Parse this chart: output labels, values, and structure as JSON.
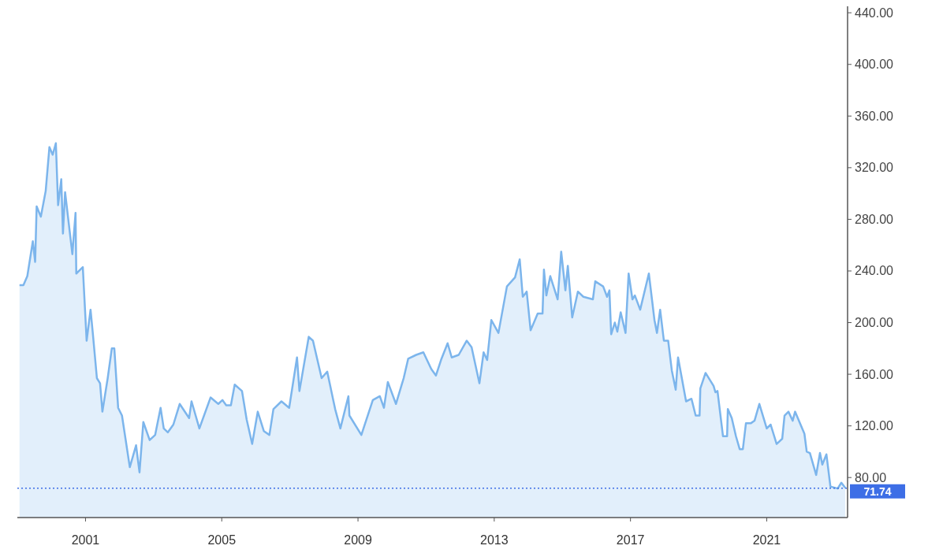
{
  "chart_data": {
    "type": "area",
    "x": [
      "1999-01-24",
      "1999-03-07",
      "1999-04-18",
      "1999-06-16",
      "1999-07-11",
      "1999-07-27",
      "1999-09-10",
      "1999-11-01",
      "1999-12-11",
      "2000-01-15",
      "2000-02-18",
      "2000-03-13",
      "2000-04-16",
      "2000-05-04",
      "2000-05-27",
      "2000-08-13",
      "2000-09-16",
      "2000-09-24",
      "2000-12-03",
      "2001-01-13",
      "2001-02-24",
      "2001-03-20",
      "2001-05-03",
      "2001-06-06",
      "2001-07-01",
      "2001-08-27",
      "2001-10-10",
      "2001-11-06",
      "2001-12-17",
      "2002-01-27",
      "2002-03-10",
      "2002-04-21",
      "2002-06-27",
      "2002-08-03",
      "2002-09-13",
      "2002-11-20",
      "2003-01-18",
      "2003-03-17",
      "2003-04-20",
      "2003-06-03",
      "2003-08-01",
      "2003-10-08",
      "2004-01-17",
      "2004-02-12",
      "2004-05-06",
      "2004-09-03",
      "2004-11-25",
      "2005-01-08",
      "2005-02-18",
      "2005-04-09",
      "2005-05-20",
      "2005-08-06",
      "2005-09-25",
      "2005-11-23",
      "2006-01-22",
      "2006-03-28",
      "2006-05-27",
      "2006-07-09",
      "2006-10-03",
      "2006-12-25",
      "2007-03-19",
      "2007-04-14",
      "2007-07-23",
      "2007-09-06",
      "2007-12-08",
      "2008-02-06",
      "2008-05-01",
      "2008-06-26",
      "2008-09-20",
      "2008-10-01",
      "2009-02-06",
      "2009-06-09",
      "2009-08-23",
      "2009-10-06",
      "2009-11-17",
      "2010-02-12",
      "2010-05-06",
      "2010-06-23",
      "2010-09-17",
      "2010-12-03",
      "2011-02-26",
      "2011-04-17",
      "2011-06-15",
      "2011-08-20",
      "2011-10-03",
      "2011-12-17",
      "2012-03-12",
      "2012-05-03",
      "2012-07-26",
      "2012-09-09",
      "2012-10-17",
      "2012-12-01",
      "2013-02-15",
      "2013-05-17",
      "2013-08-12",
      "2013-10-01",
      "2013-11-03",
      "2013-12-15",
      "2014-01-26",
      "2014-04-12",
      "2014-06-03",
      "2014-06-18",
      "2014-07-14",
      "2014-08-25",
      "2014-11-12",
      "2014-12-20",
      "2015-02-03",
      "2015-03-01",
      "2015-04-17",
      "2015-06-17",
      "2015-08-15",
      "2015-11-25",
      "2015-12-20",
      "2016-03-14",
      "2016-04-25",
      "2016-05-20",
      "2016-06-08",
      "2016-07-17",
      "2016-08-13",
      "2016-09-18",
      "2016-11-09",
      "2016-12-12",
      "2017-01-22",
      "2017-02-17",
      "2017-04-15",
      "2017-07-17",
      "2017-09-15",
      "2017-10-12",
      "2017-11-15",
      "2017-12-25",
      "2018-02-09",
      "2018-03-20",
      "2018-05-01",
      "2018-05-26",
      "2018-08-20",
      "2018-10-17",
      "2018-12-01",
      "2019-01-12",
      "2019-01-20",
      "2019-03-17",
      "2019-06-11",
      "2019-07-01",
      "2019-07-23",
      "2019-09-20",
      "2019-11-03",
      "2019-11-11",
      "2019-12-23",
      "2020-02-06",
      "2020-03-17",
      "2020-04-20",
      "2020-05-23",
      "2020-07-14",
      "2020-08-23",
      "2020-10-14",
      "2021-01-01",
      "2021-02-12",
      "2021-04-17",
      "2021-06-16",
      "2021-07-11",
      "2021-08-22",
      "2021-10-06",
      "2021-11-01",
      "2022-02-09",
      "2022-03-06",
      "2022-04-09",
      "2022-06-15",
      "2022-07-26",
      "2022-08-20",
      "2022-10-03",
      "2022-11-15",
      "2023-02-01",
      "2023-03-12",
      "2023-04-23"
    ],
    "series": [
      {
        "color": "#7cb5ec",
        "values": [
          229,
          229,
          236,
          263,
          247,
          290,
          282,
          302,
          336,
          330,
          339,
          291,
          311,
          269,
          301,
          253,
          285,
          238,
          243,
          186,
          210,
          192,
          157,
          153,
          131,
          157,
          180,
          180,
          134,
          128,
          108,
          88,
          105,
          84,
          123,
          109,
          113,
          134,
          118,
          115,
          121,
          137,
          126,
          139,
          118,
          142,
          137,
          140,
          136,
          136,
          152,
          147,
          125,
          106,
          131,
          116,
          113,
          133,
          139,
          134,
          173,
          147,
          189,
          186,
          157,
          162,
          133,
          118,
          143,
          128,
          113,
          140,
          143,
          134,
          154,
          137,
          157,
          172,
          175,
          177,
          164,
          159,
          172,
          184,
          173,
          175,
          186,
          181,
          153,
          177,
          171,
          202,
          192,
          228,
          235,
          249,
          220,
          224,
          194,
          207,
          207,
          241,
          221,
          236,
          218,
          255,
          225,
          244,
          204,
          224,
          220,
          218,
          232,
          228,
          220,
          225,
          191,
          200,
          193,
          208,
          192,
          238,
          218,
          221,
          210,
          238,
          202,
          192,
          210,
          186,
          186,
          163,
          148,
          173,
          139,
          141,
          128,
          128,
          149,
          161,
          151,
          146,
          147,
          112,
          112,
          133,
          126,
          112,
          102,
          102,
          122,
          122,
          124,
          137,
          118,
          121,
          106,
          110,
          128,
          131,
          124,
          131,
          114,
          100,
          99,
          82,
          99,
          90,
          98,
          73,
          71.5,
          76,
          72
        ]
      }
    ],
    "xlim": [
      "1999-01-01",
      "2023-05-18"
    ],
    "xticks": [
      "2001",
      "2005",
      "2009",
      "2013",
      "2017",
      "2021"
    ],
    "ylim": [
      49,
      445
    ],
    "yticks": [
      {
        "value": 80,
        "label": "80.00"
      },
      {
        "value": 120,
        "label": "120.00"
      },
      {
        "value": 160,
        "label": "160.00"
      },
      {
        "value": 200,
        "label": "200.00"
      },
      {
        "value": 240,
        "label": "240.00"
      },
      {
        "value": 280,
        "label": "280.00"
      },
      {
        "value": 320,
        "label": "320.00"
      },
      {
        "value": 360,
        "label": "360.00"
      },
      {
        "value": 400,
        "label": "400.00"
      },
      {
        "value": 440,
        "label": "440.00"
      }
    ],
    "ref_lines": [
      {
        "axis": "y",
        "value": 71.74,
        "label": "71.74",
        "color": "#3d6ee6",
        "line_style": "dotted"
      }
    ]
  }
}
